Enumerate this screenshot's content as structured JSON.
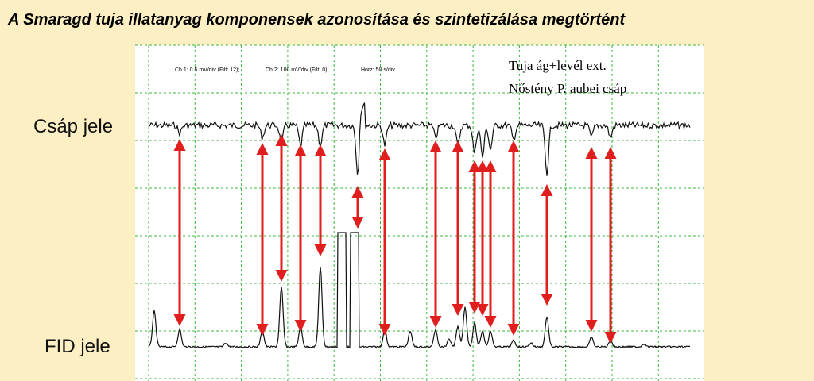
{
  "header": {
    "title": "A Smaragd tuja illatanyag komponensek azonosítása és szintetizálása megtörtént"
  },
  "labels": {
    "antenna": "Csáp jele",
    "fid": "FID jele"
  },
  "instrument": {
    "ch1": "Ch 1: 0.5 mV/div (Filt: 12);",
    "ch2": "Ch 2: 100 mV/div (Filt: 0);",
    "horz": "Horz: 50 s/div"
  },
  "legend": {
    "line1": "Tuja ág+levél ext.",
    "line2": "Nőstény P. aubei csáp"
  }
}
